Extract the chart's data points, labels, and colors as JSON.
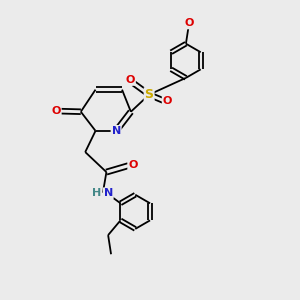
{
  "bg_color": "#ebebeb",
  "bond_color": "#000000",
  "atom_colors": {
    "N": "#2222cc",
    "O": "#dd0000",
    "S": "#ccaa00",
    "C": "#000000",
    "H": "#448888"
  },
  "lw": 1.3,
  "fs": 7.5
}
